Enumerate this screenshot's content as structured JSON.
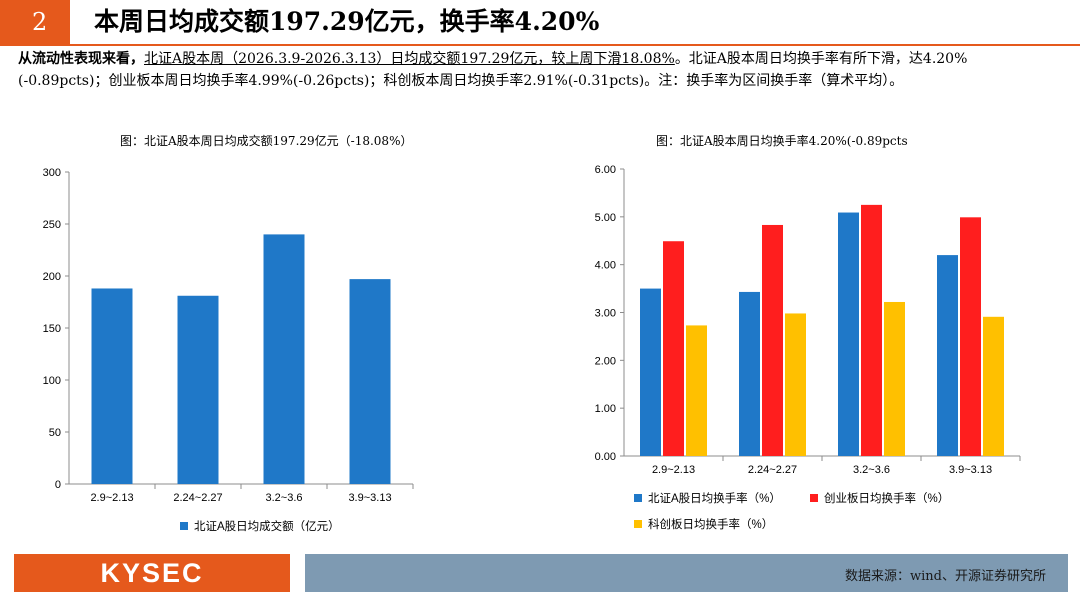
{
  "header": {
    "section_number": "2",
    "title": "本周日均成交额197.29亿元，换手率4.20%"
  },
  "summary": {
    "lead": "从流动性表现来看，",
    "underlined": "北证A股本周（2026.3.9-2026.3.13）日均成交额197.29亿元，较上周下滑18.08%",
    "rest": "。北证A股本周日均换手率有所下滑，达4.20%(-0.89pcts)；创业板本周日均换手率4.99%(-0.26pcts)；科创板本周日均换手率2.91%(-0.31pcts)。注：换手率为区间换手率（算术平均）。"
  },
  "chart_left_title": "图：北证A股本周日均成交额197.29亿元（-18.08%）",
  "chart_right_title": "图：北证A股本周日均换手率4.20%(-0.89pcts",
  "chart_data": [
    {
      "type": "bar",
      "title": "图：北证A股本周日均成交额197.29亿元（-18.08%）",
      "categories": [
        "2.9~2.13",
        "2.24~2.27",
        "3.2~3.6",
        "3.9~3.13"
      ],
      "series": [
        {
          "name": "北证A股日均成交额（亿元）",
          "color": "#1F78C8",
          "values": [
            188,
            181,
            240,
            197
          ]
        }
      ],
      "ylim": [
        0,
        300
      ],
      "yticks": [
        "0",
        "50",
        "100",
        "150",
        "200",
        "250",
        "300"
      ],
      "legend": "bottom"
    },
    {
      "type": "bar",
      "title": "图：北证A股本周日均换手率4.20%(-0.89pcts",
      "categories": [
        "2.9~2.13",
        "2.24~2.27",
        "3.2~3.6",
        "3.9~3.13"
      ],
      "series": [
        {
          "name": "北证A股日均换手率（%）",
          "color": "#1F78C8",
          "values": [
            3.5,
            3.43,
            5.09,
            4.2
          ]
        },
        {
          "name": "创业板日均换手率（%）",
          "color": "#FF1E1E",
          "values": [
            4.49,
            4.83,
            5.25,
            4.99
          ]
        },
        {
          "name": "科创板日均换手率（%）",
          "color": "#FFC000",
          "values": [
            2.73,
            2.98,
            3.22,
            2.91
          ]
        }
      ],
      "ylim": [
        0,
        6
      ],
      "yticks": [
        "0.00",
        "1.00",
        "2.00",
        "3.00",
        "4.00",
        "5.00",
        "6.00"
      ],
      "legend": "bottom"
    }
  ],
  "footer": {
    "logo_text": "KYSEC",
    "source": "数据来源：wind、开源证券研究所"
  }
}
